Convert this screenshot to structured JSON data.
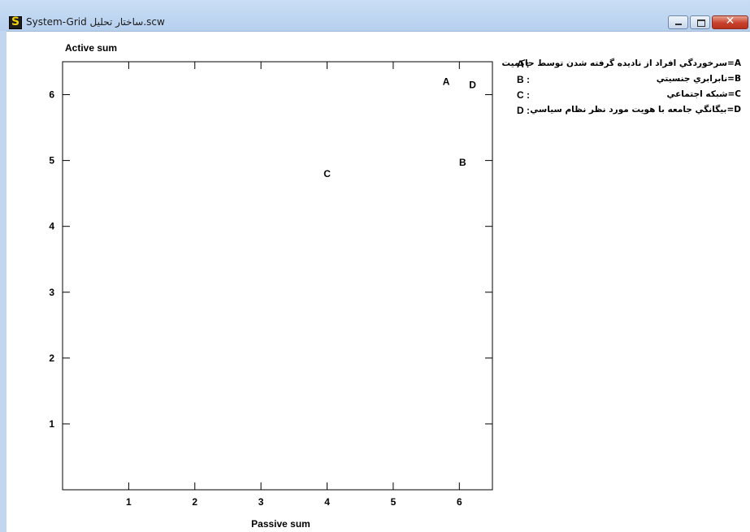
{
  "window": {
    "title": "System-Grid ساختار تحليل.scw",
    "icon": "app-s-icon",
    "controls": {
      "minimize": "minimize-icon",
      "maximize": "maximize-icon",
      "close": "close-icon"
    }
  },
  "chart_data": {
    "type": "scatter",
    "title": "",
    "xlabel": "Passive sum",
    "ylabel": "Active sum",
    "xlim": [
      0,
      6.5
    ],
    "ylim": [
      0,
      6.5
    ],
    "x_ticks": [
      1,
      2,
      3,
      4,
      5,
      6
    ],
    "y_ticks": [
      1,
      2,
      3,
      4,
      5,
      6
    ],
    "grid": false,
    "legend_position": "right",
    "points": [
      {
        "label": "A",
        "x": 5.8,
        "y": 6.2
      },
      {
        "label": "D",
        "x": 6.2,
        "y": 6.15
      },
      {
        "label": "B",
        "x": 6.05,
        "y": 4.97
      },
      {
        "label": "C",
        "x": 4.0,
        "y": 4.8
      }
    ]
  },
  "legend": [
    {
      "key": "A :",
      "text": "A=سرخوردگي افراد از ناديده گرفته شدن توسط حاكميت"
    },
    {
      "key": "B :",
      "text": "B=نابرابري جنسيتي"
    },
    {
      "key": "C :",
      "text": "C=شبكه اجتماعي"
    },
    {
      "key": "D :",
      "text": "D=بيگانگي جامعه با هويت مورد نظر نظام سياسي"
    }
  ]
}
